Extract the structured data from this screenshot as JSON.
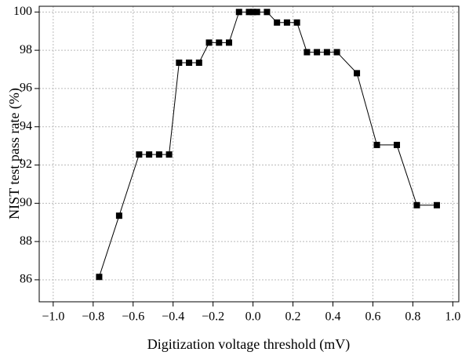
{
  "chart_data": {
    "type": "line",
    "x_label": "Digitization voltage threshold (mV)",
    "y_label": "NIST test pass rate (%)",
    "x": [
      -0.77,
      -0.67,
      -0.57,
      -0.52,
      -0.47,
      -0.42,
      -0.37,
      -0.32,
      -0.27,
      -0.22,
      -0.17,
      -0.12,
      -0.07,
      -0.02,
      0,
      0.02,
      0.07,
      0.12,
      0.17,
      0.22,
      0.27,
      0.32,
      0.37,
      0.42,
      0.52,
      0.62,
      0.72,
      0.82,
      0.92
    ],
    "series": [
      {
        "color": "#000000",
        "marker": "square",
        "values": [
          86.15,
          89.35,
          92.55,
          92.55,
          92.55,
          92.55,
          97.35,
          97.35,
          97.35,
          98.4,
          98.4,
          98.4,
          100,
          100,
          100,
          100,
          100,
          99.45,
          99.45,
          99.45,
          97.9,
          97.9,
          97.9,
          97.9,
          96.8,
          93.05,
          93.05,
          89.9,
          89.9
        ]
      }
    ],
    "xlim": [
      -1.07,
      1.03
    ],
    "ylim": [
      84.85,
      100.3
    ],
    "xticks": [
      {
        "value": -1.0,
        "label": "−1.0"
      },
      {
        "value": -0.8,
        "label": "−0.8"
      },
      {
        "value": -0.6,
        "label": "−0.6"
      },
      {
        "value": -0.4,
        "label": "−0.4"
      },
      {
        "value": -0.2,
        "label": "−0.2"
      },
      {
        "value": 0,
        "label": "0.0"
      },
      {
        "value": 0.2,
        "label": "0.2"
      },
      {
        "value": 0.4,
        "label": "0.4"
      },
      {
        "value": 0.6,
        "label": "0.6"
      },
      {
        "value": 0.8,
        "label": "0.8"
      },
      {
        "value": 1.0,
        "label": "1.0"
      }
    ],
    "yticks": [
      86,
      88,
      90,
      92,
      94,
      96,
      98,
      100
    ],
    "grid": true
  }
}
